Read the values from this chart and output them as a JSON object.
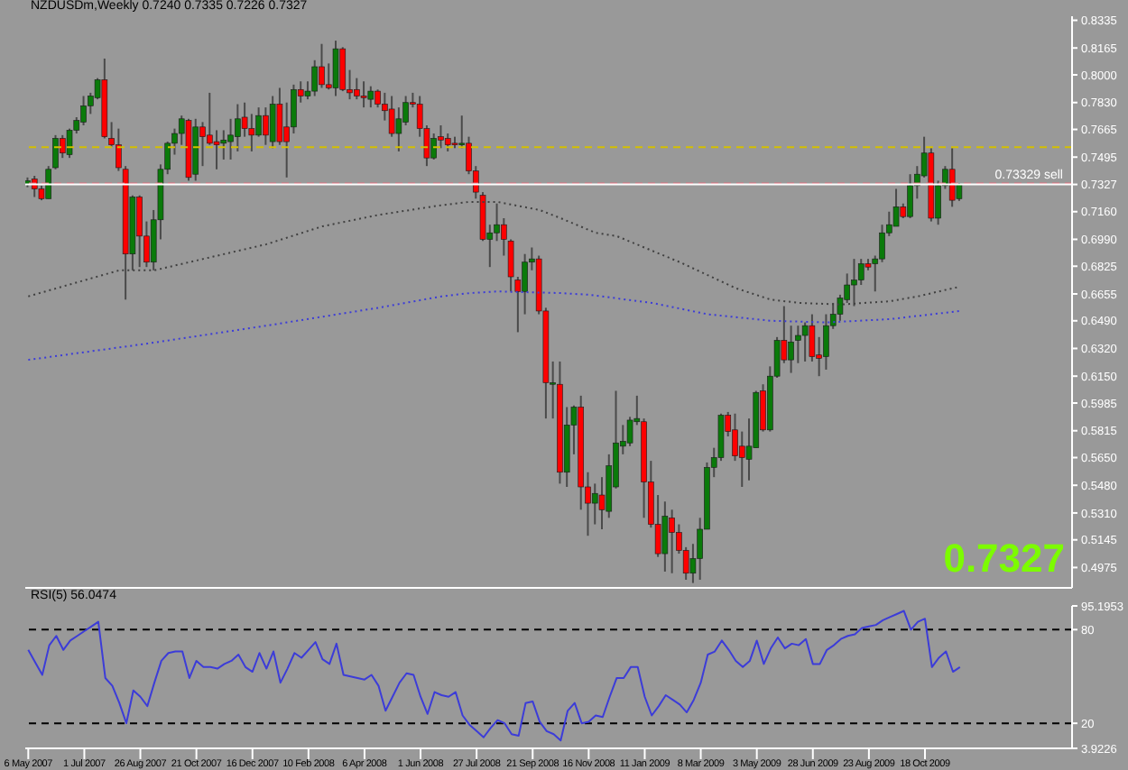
{
  "chart_data": [
    {
      "type": "candlestick",
      "title": "NZDUSDm,Weekly  0.7240 0.7335 0.7226 0.7327",
      "x": [
        "2007-05-06",
        "2007-05-13",
        "2007-05-20",
        "2007-05-27",
        "2007-06-03",
        "2007-06-10",
        "2007-06-17",
        "2007-06-24",
        "2007-07-01",
        "2007-07-08",
        "2007-07-15",
        "2007-07-22",
        "2007-07-29",
        "2007-08-05",
        "2007-08-12",
        "2007-08-19",
        "2007-08-26",
        "2007-09-02",
        "2007-09-09",
        "2007-09-16",
        "2007-09-23",
        "2007-09-30",
        "2007-10-07",
        "2007-10-14",
        "2007-10-21",
        "2007-10-28",
        "2007-11-04",
        "2007-11-11",
        "2007-11-18",
        "2007-11-25",
        "2007-12-02",
        "2007-12-09",
        "2007-12-16",
        "2007-12-23",
        "2007-12-30",
        "2008-01-06",
        "2008-01-13",
        "2008-01-20",
        "2008-01-27",
        "2008-02-03",
        "2008-02-10",
        "2008-02-17",
        "2008-02-24",
        "2008-03-02",
        "2008-03-09",
        "2008-03-16",
        "2008-03-23",
        "2008-03-30",
        "2008-04-06",
        "2008-04-13",
        "2008-04-20",
        "2008-04-27",
        "2008-05-04",
        "2008-05-11",
        "2008-05-18",
        "2008-05-25",
        "2008-06-01",
        "2008-06-08",
        "2008-06-15",
        "2008-06-22",
        "2008-06-29",
        "2008-07-06",
        "2008-07-13",
        "2008-07-20",
        "2008-07-27",
        "2008-08-03",
        "2008-08-10",
        "2008-08-17",
        "2008-08-24",
        "2008-08-31",
        "2008-09-07",
        "2008-09-14",
        "2008-09-21",
        "2008-09-28",
        "2008-10-05",
        "2008-10-12",
        "2008-10-19",
        "2008-10-26",
        "2008-11-02",
        "2008-11-09",
        "2008-11-16",
        "2008-11-23",
        "2008-11-30",
        "2008-12-07",
        "2008-12-14",
        "2008-12-21",
        "2008-12-28",
        "2009-01-04",
        "2009-01-11",
        "2009-01-18",
        "2009-01-25",
        "2009-02-01",
        "2009-02-08",
        "2009-02-15",
        "2009-02-22",
        "2009-03-01",
        "2009-03-08",
        "2009-03-15",
        "2009-03-22",
        "2009-03-29",
        "2009-04-05",
        "2009-04-12",
        "2009-04-19",
        "2009-04-26",
        "2009-05-03",
        "2009-05-10",
        "2009-05-17",
        "2009-05-24",
        "2009-05-31",
        "2009-06-07",
        "2009-06-14",
        "2009-06-21",
        "2009-06-28",
        "2009-07-05",
        "2009-07-12",
        "2009-07-19",
        "2009-07-26",
        "2009-08-02",
        "2009-08-09",
        "2009-08-16",
        "2009-08-23",
        "2009-08-30",
        "2009-09-06",
        "2009-09-13",
        "2009-09-20",
        "2009-09-27",
        "2009-10-04",
        "2009-10-11",
        "2009-10-18",
        "2009-10-25",
        "2009-11-01",
        "2009-11-08",
        "2009-11-15",
        "2009-11-22"
      ],
      "ohlc": [
        [
          0.733,
          0.737,
          0.731,
          0.735
        ],
        [
          0.736,
          0.738,
          0.725,
          0.73
        ],
        [
          0.73,
          0.732,
          0.723,
          0.724
        ],
        [
          0.724,
          0.744,
          0.724,
          0.742
        ],
        [
          0.743,
          0.763,
          0.742,
          0.761
        ],
        [
          0.761,
          0.763,
          0.749,
          0.752
        ],
        [
          0.751,
          0.767,
          0.749,
          0.766
        ],
        [
          0.766,
          0.774,
          0.764,
          0.772
        ],
        [
          0.771,
          0.787,
          0.769,
          0.781
        ],
        [
          0.781,
          0.789,
          0.776,
          0.787
        ],
        [
          0.786,
          0.798,
          0.785,
          0.797
        ],
        [
          0.797,
          0.81,
          0.761,
          0.762
        ],
        [
          0.761,
          0.771,
          0.756,
          0.757
        ],
        [
          0.757,
          0.767,
          0.741,
          0.743
        ],
        [
          0.742,
          0.744,
          0.662,
          0.69
        ],
        [
          0.69,
          0.726,
          0.68,
          0.725
        ],
        [
          0.725,
          0.726,
          0.682,
          0.701
        ],
        [
          0.701,
          0.71,
          0.682,
          0.685
        ],
        [
          0.685,
          0.717,
          0.68,
          0.711
        ],
        [
          0.711,
          0.745,
          0.699,
          0.742
        ],
        [
          0.742,
          0.759,
          0.739,
          0.758
        ],
        [
          0.758,
          0.767,
          0.751,
          0.764
        ],
        [
          0.764,
          0.775,
          0.757,
          0.773
        ],
        [
          0.772,
          0.773,
          0.735,
          0.737
        ],
        [
          0.739,
          0.773,
          0.735,
          0.768
        ],
        [
          0.768,
          0.771,
          0.744,
          0.762
        ],
        [
          0.763,
          0.789,
          0.757,
          0.758
        ],
        [
          0.759,
          0.766,
          0.742,
          0.757
        ],
        [
          0.758,
          0.766,
          0.748,
          0.76
        ],
        [
          0.759,
          0.773,
          0.748,
          0.763
        ],
        [
          0.762,
          0.782,
          0.753,
          0.773
        ],
        [
          0.774,
          0.783,
          0.762,
          0.767
        ],
        [
          0.767,
          0.776,
          0.753,
          0.763
        ],
        [
          0.763,
          0.78,
          0.762,
          0.775
        ],
        [
          0.775,
          0.78,
          0.757,
          0.763
        ],
        [
          0.759,
          0.787,
          0.755,
          0.782
        ],
        [
          0.782,
          0.792,
          0.757,
          0.759
        ],
        [
          0.768,
          0.783,
          0.737,
          0.759
        ],
        [
          0.768,
          0.794,
          0.764,
          0.791
        ],
        [
          0.791,
          0.796,
          0.783,
          0.787
        ],
        [
          0.787,
          0.796,
          0.785,
          0.79
        ],
        [
          0.79,
          0.809,
          0.787,
          0.805
        ],
        [
          0.805,
          0.819,
          0.792,
          0.794
        ],
        [
          0.794,
          0.807,
          0.791,
          0.792
        ],
        [
          0.792,
          0.821,
          0.787,
          0.816
        ],
        [
          0.816,
          0.817,
          0.79,
          0.791
        ],
        [
          0.791,
          0.803,
          0.785,
          0.789
        ],
        [
          0.791,
          0.798,
          0.785,
          0.787
        ],
        [
          0.787,
          0.796,
          0.78,
          0.786
        ],
        [
          0.785,
          0.793,
          0.78,
          0.79
        ],
        [
          0.79,
          0.791,
          0.78,
          0.782
        ],
        [
          0.782,
          0.789,
          0.772,
          0.778
        ],
        [
          0.779,
          0.787,
          0.762,
          0.764
        ],
        [
          0.764,
          0.78,
          0.753,
          0.773
        ],
        [
          0.771,
          0.787,
          0.769,
          0.783
        ],
        [
          0.783,
          0.789,
          0.78,
          0.782
        ],
        [
          0.782,
          0.787,
          0.762,
          0.767
        ],
        [
          0.767,
          0.769,
          0.744,
          0.749
        ],
        [
          0.749,
          0.764,
          0.748,
          0.761
        ],
        [
          0.762,
          0.769,
          0.755,
          0.76
        ],
        [
          0.761,
          0.764,
          0.753,
          0.757
        ],
        [
          0.758,
          0.762,
          0.755,
          0.757
        ],
        [
          0.757,
          0.775,
          0.755,
          0.758
        ],
        [
          0.758,
          0.762,
          0.739,
          0.741
        ],
        [
          0.741,
          0.744,
          0.724,
          0.728
        ],
        [
          0.726,
          0.728,
          0.698,
          0.699
        ],
        [
          0.699,
          0.708,
          0.682,
          0.703
        ],
        [
          0.703,
          0.721,
          0.698,
          0.708
        ],
        [
          0.708,
          0.712,
          0.689,
          0.699
        ],
        [
          0.698,
          0.699,
          0.667,
          0.676
        ],
        [
          0.674,
          0.676,
          0.642,
          0.667
        ],
        [
          0.667,
          0.69,
          0.653,
          0.685
        ],
        [
          0.685,
          0.694,
          0.68,
          0.687
        ],
        [
          0.687,
          0.689,
          0.653,
          0.655
        ],
        [
          0.655,
          0.657,
          0.589,
          0.611
        ],
        [
          0.61,
          0.624,
          0.589,
          0.611
        ],
        [
          0.61,
          0.624,
          0.549,
          0.556
        ],
        [
          0.556,
          0.596,
          0.547,
          0.585
        ],
        [
          0.585,
          0.597,
          0.567,
          0.596
        ],
        [
          0.596,
          0.603,
          0.533,
          0.547
        ],
        [
          0.547,
          0.556,
          0.517,
          0.537
        ],
        [
          0.537,
          0.549,
          0.524,
          0.543
        ],
        [
          0.542,
          0.553,
          0.521,
          0.533
        ],
        [
          0.532,
          0.567,
          0.528,
          0.56
        ],
        [
          0.547,
          0.606,
          0.546,
          0.574
        ],
        [
          0.572,
          0.585,
          0.567,
          0.575
        ],
        [
          0.574,
          0.59,
          0.572,
          0.588
        ],
        [
          0.587,
          0.603,
          0.585,
          0.589
        ],
        [
          0.587,
          0.589,
          0.528,
          0.55
        ],
        [
          0.55,
          0.563,
          0.522,
          0.524
        ],
        [
          0.524,
          0.542,
          0.504,
          0.506
        ],
        [
          0.506,
          0.538,
          0.495,
          0.529
        ],
        [
          0.528,
          0.533,
          0.494,
          0.519
        ],
        [
          0.519,
          0.524,
          0.506,
          0.508
        ],
        [
          0.508,
          0.51,
          0.49,
          0.494
        ],
        [
          0.494,
          0.512,
          0.488,
          0.503
        ],
        [
          0.503,
          0.528,
          0.49,
          0.521
        ],
        [
          0.521,
          0.562,
          0.521,
          0.559
        ],
        [
          0.559,
          0.571,
          0.553,
          0.565
        ],
        [
          0.565,
          0.592,
          0.563,
          0.591
        ],
        [
          0.591,
          0.593,
          0.578,
          0.581
        ],
        [
          0.582,
          0.592,
          0.563,
          0.566
        ],
        [
          0.572,
          0.581,
          0.547,
          0.565
        ],
        [
          0.564,
          0.589,
          0.551,
          0.572
        ],
        [
          0.571,
          0.606,
          0.571,
          0.605
        ],
        [
          0.606,
          0.61,
          0.581,
          0.582
        ],
        [
          0.582,
          0.621,
          0.581,
          0.615
        ],
        [
          0.615,
          0.639,
          0.614,
          0.637
        ],
        [
          0.637,
          0.658,
          0.623,
          0.625
        ],
        [
          0.625,
          0.646,
          0.617,
          0.636
        ],
        [
          0.637,
          0.646,
          0.623,
          0.64
        ],
        [
          0.64,
          0.648,
          0.624,
          0.646
        ],
        [
          0.646,
          0.653,
          0.624,
          0.627
        ],
        [
          0.628,
          0.639,
          0.615,
          0.626
        ],
        [
          0.627,
          0.653,
          0.619,
          0.646
        ],
        [
          0.646,
          0.66,
          0.644,
          0.653
        ],
        [
          0.653,
          0.665,
          0.649,
          0.663
        ],
        [
          0.662,
          0.678,
          0.66,
          0.671
        ],
        [
          0.671,
          0.687,
          0.658,
          0.674
        ],
        [
          0.674,
          0.687,
          0.671,
          0.684
        ],
        [
          0.684,
          0.687,
          0.68,
          0.682
        ],
        [
          0.684,
          0.689,
          0.667,
          0.687
        ],
        [
          0.687,
          0.708,
          0.685,
          0.703
        ],
        [
          0.703,
          0.716,
          0.701,
          0.708
        ],
        [
          0.707,
          0.73,
          0.707,
          0.719
        ],
        [
          0.719,
          0.721,
          0.712,
          0.713
        ],
        [
          0.713,
          0.739,
          0.712,
          0.732
        ],
        [
          0.732,
          0.744,
          0.724,
          0.739
        ],
        [
          0.738,
          0.762,
          0.737,
          0.752
        ],
        [
          0.752,
          0.755,
          0.71,
          0.712
        ],
        [
          0.712,
          0.735,
          0.708,
          0.732
        ],
        [
          0.732,
          0.744,
          0.73,
          0.742
        ],
        [
          0.742,
          0.755,
          0.719,
          0.723
        ],
        [
          0.724,
          0.7335,
          0.7226,
          0.7327
        ]
      ],
      "series": [
        {
          "type": "line",
          "color": "#404040",
          "line_style": "dotted",
          "x": [
            "2007-05-06",
            "2007-08-05",
            "2007-09-09",
            "2007-10-28",
            "2007-12-30",
            "2008-02-24",
            "2008-04-20",
            "2008-06-22",
            "2008-07-20",
            "2008-08-17",
            "2008-09-28",
            "2008-10-19",
            "2008-11-23",
            "2008-12-14",
            "2009-02-15",
            "2009-04-12",
            "2009-05-17",
            "2009-06-14",
            "2009-07-26",
            "2009-09-13",
            "2009-10-11",
            "2009-11-22"
          ],
          "values": [
            0.664,
            0.68,
            0.68,
            0.687,
            0.696,
            0.707,
            0.714,
            0.72,
            0.722,
            0.722,
            0.717,
            0.712,
            0.703,
            0.701,
            0.685,
            0.669,
            0.662,
            0.66,
            0.659,
            0.661,
            0.664,
            0.67
          ]
        },
        {
          "type": "line",
          "color": "#3c3cd8",
          "line_style": "dotted",
          "x": [
            "2007-05-06",
            "2007-09-02",
            "2007-12-30",
            "2008-04-20",
            "2008-06-22",
            "2008-07-20",
            "2008-08-17",
            "2008-10-19",
            "2008-11-16",
            "2009-01-18",
            "2009-03-15",
            "2009-05-17",
            "2009-07-12",
            "2009-09-13",
            "2009-11-22"
          ],
          "values": [
            0.625,
            0.635,
            0.646,
            0.657,
            0.664,
            0.666,
            0.667,
            0.666,
            0.665,
            0.66,
            0.653,
            0.649,
            0.648,
            0.65,
            0.655
          ]
        }
      ],
      "xlim": [
        "2007-05-03",
        "2010-03-14"
      ],
      "ylim": [
        0.485,
        0.836
      ],
      "yticks": [
        {
          "value": 0.8335,
          "label": "0.8335"
        },
        {
          "value": 0.8165,
          "label": "0.8165"
        },
        {
          "value": 0.8,
          "label": "0.8000"
        },
        {
          "value": 0.783,
          "label": "0.7830"
        },
        {
          "value": 0.7665,
          "label": "0.7665"
        },
        {
          "value": 0.7495,
          "label": "0.7495"
        },
        {
          "value": 0.7327,
          "label": "0.7327"
        },
        {
          "value": 0.716,
          "label": "0.7160"
        },
        {
          "value": 0.699,
          "label": "0.6990"
        },
        {
          "value": 0.6825,
          "label": "0.6825"
        },
        {
          "value": 0.6655,
          "label": "0.6655"
        },
        {
          "value": 0.649,
          "label": "0.6490"
        },
        {
          "value": 0.632,
          "label": "0.6320"
        },
        {
          "value": 0.615,
          "label": "0.6150"
        },
        {
          "value": 0.5985,
          "label": "0.5985"
        },
        {
          "value": 0.5815,
          "label": "0.5815"
        },
        {
          "value": 0.565,
          "label": "0.5650"
        },
        {
          "value": 0.548,
          "label": "0.5480"
        },
        {
          "value": 0.531,
          "label": "0.5310"
        },
        {
          "value": 0.5145,
          "label": "0.5145"
        },
        {
          "value": 0.4975,
          "label": "0.4975"
        }
      ],
      "tick_labels": "y",
      "ref_lines": [
        {
          "axis": "y",
          "value": 0.7556,
          "color": "#d4c000",
          "line_style": "dashed"
        },
        {
          "axis": "y",
          "value": 0.7333,
          "label": "0.73329 sell",
          "color": "#e07080",
          "line_style": "dashed"
        },
        {
          "axis": "y",
          "value": 0.7327,
          "color": "#ffffff",
          "line_style": "solid"
        }
      ],
      "annotations": [
        "0.7327"
      ]
    },
    {
      "type": "line",
      "title": "RSI(5) 56.0474",
      "x": [
        "2007-05-06",
        "2007-05-13",
        "2007-05-20",
        "2007-05-27",
        "2007-06-03",
        "2007-06-10",
        "2007-06-17",
        "2007-06-24",
        "2007-07-01",
        "2007-07-08",
        "2007-07-15",
        "2007-07-22",
        "2007-07-29",
        "2007-08-05",
        "2007-08-12",
        "2007-08-19",
        "2007-08-26",
        "2007-09-02",
        "2007-09-09",
        "2007-09-16",
        "2007-09-23",
        "2007-09-30",
        "2007-10-07",
        "2007-10-14",
        "2007-10-21",
        "2007-10-28",
        "2007-11-04",
        "2007-11-11",
        "2007-11-18",
        "2007-11-25",
        "2007-12-02",
        "2007-12-09",
        "2007-12-16",
        "2007-12-23",
        "2007-12-30",
        "2008-01-06",
        "2008-01-13",
        "2008-01-20",
        "2008-01-27",
        "2008-02-03",
        "2008-02-10",
        "2008-02-17",
        "2008-02-24",
        "2008-03-02",
        "2008-03-09",
        "2008-03-16",
        "2008-03-23",
        "2008-03-30",
        "2008-04-06",
        "2008-04-13",
        "2008-04-20",
        "2008-04-27",
        "2008-05-04",
        "2008-05-11",
        "2008-05-18",
        "2008-05-25",
        "2008-06-01",
        "2008-06-08",
        "2008-06-15",
        "2008-06-22",
        "2008-06-29",
        "2008-07-06",
        "2008-07-13",
        "2008-07-20",
        "2008-07-27",
        "2008-08-03",
        "2008-08-10",
        "2008-08-17",
        "2008-08-24",
        "2008-08-31",
        "2008-09-07",
        "2008-09-14",
        "2008-09-21",
        "2008-09-28",
        "2008-10-05",
        "2008-10-12",
        "2008-10-19",
        "2008-10-26",
        "2008-11-02",
        "2008-11-09",
        "2008-11-16",
        "2008-11-23",
        "2008-11-30",
        "2008-12-07",
        "2008-12-14",
        "2008-12-21",
        "2008-12-28",
        "2009-01-04",
        "2009-01-11",
        "2009-01-18",
        "2009-01-25",
        "2009-02-01",
        "2009-02-08",
        "2009-02-15",
        "2009-02-22",
        "2009-03-01",
        "2009-03-08",
        "2009-03-15",
        "2009-03-22",
        "2009-03-29",
        "2009-04-05",
        "2009-04-12",
        "2009-04-19",
        "2009-04-26",
        "2009-05-03",
        "2009-05-10",
        "2009-05-17",
        "2009-05-24",
        "2009-05-31",
        "2009-06-07",
        "2009-06-14",
        "2009-06-21",
        "2009-06-28",
        "2009-07-05",
        "2009-07-12",
        "2009-07-19",
        "2009-07-26",
        "2009-08-02",
        "2009-08-09",
        "2009-08-16",
        "2009-08-23",
        "2009-08-30",
        "2009-09-06",
        "2009-09-13",
        "2009-09-20",
        "2009-09-27",
        "2009-10-04",
        "2009-10-11",
        "2009-10-18",
        "2009-10-25",
        "2009-11-01",
        "2009-11-08",
        "2009-11-15",
        "2009-11-22"
      ],
      "series": [
        {
          "color": "#3c3cd8",
          "values": [
            67,
            59,
            51,
            70,
            76,
            67,
            73,
            76,
            79,
            82,
            85,
            49,
            44,
            33,
            20,
            41,
            37,
            31,
            46,
            60,
            65,
            66,
            66,
            49,
            60,
            56,
            56,
            55,
            58,
            60,
            64,
            56,
            53,
            65,
            55,
            66,
            46,
            55,
            65,
            62,
            67,
            72,
            61,
            58,
            71,
            51,
            50,
            49,
            48,
            51,
            44,
            28,
            37,
            46,
            52,
            51,
            37,
            26,
            40,
            38,
            37,
            40,
            25,
            19,
            15,
            11,
            17,
            22,
            20,
            13,
            12,
            33,
            34,
            21,
            15,
            13,
            9,
            28,
            33,
            20,
            21,
            25,
            24,
            37,
            49,
            49,
            56,
            56,
            37,
            25,
            31,
            38,
            35,
            32,
            27,
            35,
            46,
            64,
            66,
            73,
            67,
            60,
            56,
            60,
            73,
            58,
            68,
            75,
            68,
            71,
            70,
            74,
            58,
            58,
            67,
            70,
            74,
            76,
            77,
            81,
            82,
            83,
            86,
            88,
            90,
            92,
            80,
            85,
            87,
            56,
            62,
            66,
            53,
            56
          ]
        }
      ],
      "xlim": [
        "2007-05-03",
        "2010-03-14"
      ],
      "xticks": [
        {
          "value": "2007-05-06",
          "label": "6 May 2007"
        },
        {
          "value": "2007-07-01",
          "label": "1 Jul 2007"
        },
        {
          "value": "2007-08-26",
          "label": "26 Aug 2007"
        },
        {
          "value": "2007-10-21",
          "label": "21 Oct 2007"
        },
        {
          "value": "2007-12-16",
          "label": "16 Dec 2007"
        },
        {
          "value": "2008-02-10",
          "label": "10 Feb 2008"
        },
        {
          "value": "2008-04-06",
          "label": "6 Apr 2008"
        },
        {
          "value": "2008-06-01",
          "label": "1 Jun 2008"
        },
        {
          "value": "2008-07-27",
          "label": "27 Jul 2008"
        },
        {
          "value": "2008-09-21",
          "label": "21 Sep 2008"
        },
        {
          "value": "2008-11-16",
          "label": "16 Nov 2008"
        },
        {
          "value": "2009-01-11",
          "label": "11 Jan 2009"
        },
        {
          "value": "2009-03-08",
          "label": "8 Mar 2009"
        },
        {
          "value": "2009-05-03",
          "label": "3 May 2009"
        },
        {
          "value": "2009-06-28",
          "label": "28 Jun 2009"
        },
        {
          "value": "2009-08-23",
          "label": "23 Aug 2009"
        },
        {
          "value": "2009-10-18",
          "label": "18 Oct 2009"
        }
      ],
      "ylim": [
        3.9226,
        95.1953
      ],
      "yticks": [
        3.9226,
        20,
        80,
        95.1953
      ],
      "ref_lines": [
        {
          "axis": "y",
          "value": 80,
          "color": "#000000",
          "line_style": "dashed"
        },
        {
          "axis": "y",
          "value": 20,
          "color": "#000000",
          "line_style": "dashed"
        }
      ]
    }
  ]
}
